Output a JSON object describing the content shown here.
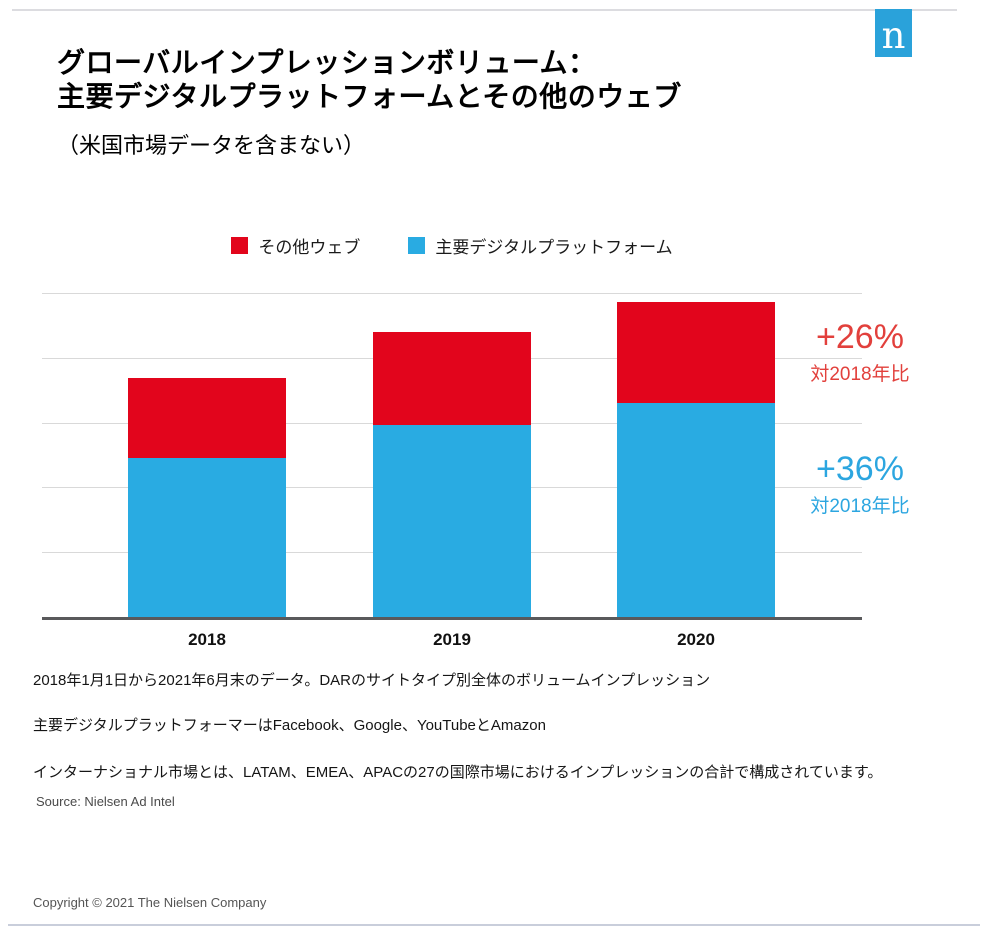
{
  "logo": {
    "letter": "n",
    "color": "#2aa2da"
  },
  "header": {
    "title_line1": "グローバルインプレッションボリューム：",
    "title_line2": "主要デジタルプラットフォームとその他のウェブ",
    "subtitle": "（米国市場データを含まない）"
  },
  "legend": [
    {
      "label": "その他ウェブ",
      "color": "#e2051c"
    },
    {
      "label": "主要デジタルプラットフォーム",
      "color": "#29abe2"
    }
  ],
  "chart_data": {
    "type": "bar",
    "stacked": true,
    "categories": [
      "2018",
      "2019",
      "2020"
    ],
    "series": [
      {
        "name": "主要デジタルプラットフォーム",
        "color": "#29abe2",
        "values": [
          49.2,
          59.4,
          66.2
        ]
      },
      {
        "name": "その他ウェブ",
        "color": "#e2051c",
        "values": [
          24.6,
          28.6,
          31.1
        ]
      }
    ],
    "ylim": [
      0,
      100
    ],
    "y_axis_labels": "none",
    "gridlines": "horizontal, 5 intervals",
    "legend_position": "top-center",
    "note": "values are relative index units estimated from bar heights; 2020 vs 2018: platforms +36%, other web +26%"
  },
  "annotations": [
    {
      "value": "+26%",
      "caption": "対2018年比",
      "color": "#e2403c",
      "refers_to": "その他ウェブ"
    },
    {
      "value": "+36%",
      "caption": "対2018年比",
      "color": "#2ca6e0",
      "refers_to": "主要デジタルプラットフォーム"
    }
  ],
  "footnotes": [
    "2018年1月1日から2021年6月末のデータ。DARのサイトタイプ別全体のボリュームインプレッション",
    "主要デジタルプラットフォーマーはFacebook、Google、YouTubeとAmazon",
    "インターナショナル市場とは、LATAM、EMEA、APACの27の国際市場におけるインプレッションの合計で構成されています。"
  ],
  "source": "Source: Nielsen Ad Intel",
  "copyright": "Copyright © 2021 The Nielsen Company"
}
